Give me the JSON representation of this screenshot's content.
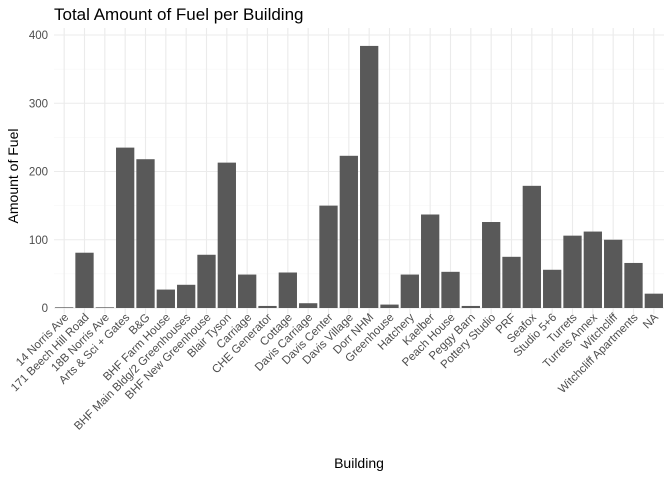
{
  "chart_data": {
    "type": "bar",
    "title": "Total Amount of Fuel per Building",
    "xlabel": "Building",
    "ylabel": "Amount of Fuel",
    "ylim": [
      0,
      400
    ],
    "yticks": [
      0,
      100,
      200,
      300,
      400
    ],
    "grid": true,
    "bar_color": "#595959",
    "categories": [
      "14 Norris Ave",
      "171 Beech Hill Road",
      "18B Norris Ave",
      "Arts & Sci + Gates",
      "B&G",
      "BHF Farm House",
      "BHF Main Bldg/2 Greenhouses",
      "BHF New Greenhouse",
      "Blair Tyson",
      "Carriage",
      "CHE Generator",
      "Cottage",
      "Davis Carriage",
      "Davis Center",
      "Davis Village",
      "Dorr NHM",
      "Greenhouse",
      "Hatchery",
      "Kaelber",
      "Peach House",
      "Peggy Barn",
      "Pottery Studio",
      "PRF",
      "Seafox",
      "Studio 5+6",
      "Turrets",
      "Turrets Annex",
      "Witchcliff",
      "Witchcliff Apartments",
      "NA"
    ],
    "values": [
      1,
      81,
      1,
      235,
      218,
      27,
      34,
      78,
      213,
      49,
      3,
      52,
      7,
      150,
      223,
      384,
      5,
      49,
      137,
      53,
      3,
      126,
      75,
      179,
      56,
      106,
      112,
      100,
      66,
      21
    ]
  }
}
